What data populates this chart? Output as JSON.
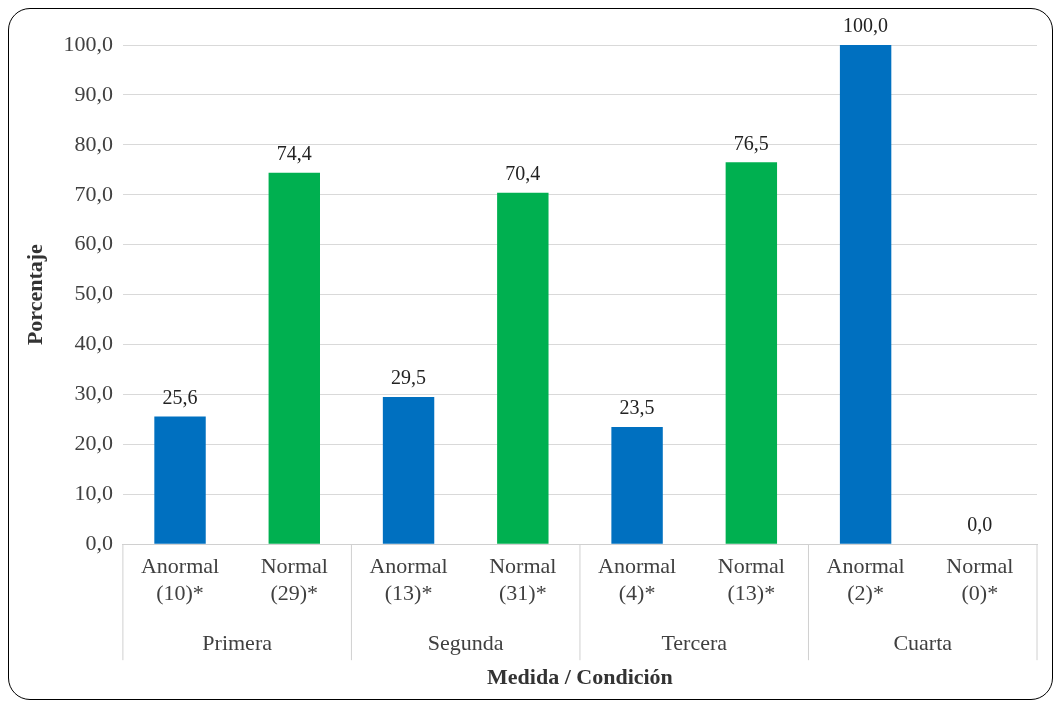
{
  "chart_data": {
    "type": "bar",
    "xlabel": "Medida / Condición",
    "ylabel": "Porcentaje",
    "categories": [
      "Anormal (10)*",
      "Normal (29)*",
      "Anormal (13)*",
      "Normal (31)*",
      "Anormal (4)*",
      "Normal (13)*",
      "Anormal (2)*",
      "Normal (0)*"
    ],
    "values": [
      25.6,
      74.4,
      29.5,
      70.4,
      23.5,
      76.5,
      100.0,
      0.0
    ],
    "colors": [
      "#0070c0",
      "#00b050",
      "#0070c0",
      "#00b050",
      "#0070c0",
      "#00b050",
      "#0070c0",
      "#00b050"
    ],
    "value_labels": [
      "25,6",
      "74,4",
      "29,5",
      "70,4",
      "23,5",
      "76,5",
      "100,0",
      "0,0"
    ],
    "annotations": [
      "Primera",
      "Segunda",
      "Tercera",
      "Cuarta"
    ],
    "ylim": [
      0,
      100
    ],
    "yticks": [
      {
        "value": 0,
        "label": "0,0"
      },
      {
        "value": 10,
        "label": "10,0"
      },
      {
        "value": 20,
        "label": "20,0"
      },
      {
        "value": 30,
        "label": "30,0"
      },
      {
        "value": 40,
        "label": "40,0"
      },
      {
        "value": 50,
        "label": "50,0"
      },
      {
        "value": 60,
        "label": "60,0"
      },
      {
        "value": 70,
        "label": "70,0"
      },
      {
        "value": 80,
        "label": "80,0"
      },
      {
        "value": 90,
        "label": "90,0"
      },
      {
        "value": 100,
        "label": "100,0"
      }
    ],
    "grid": "y",
    "legend": false
  }
}
